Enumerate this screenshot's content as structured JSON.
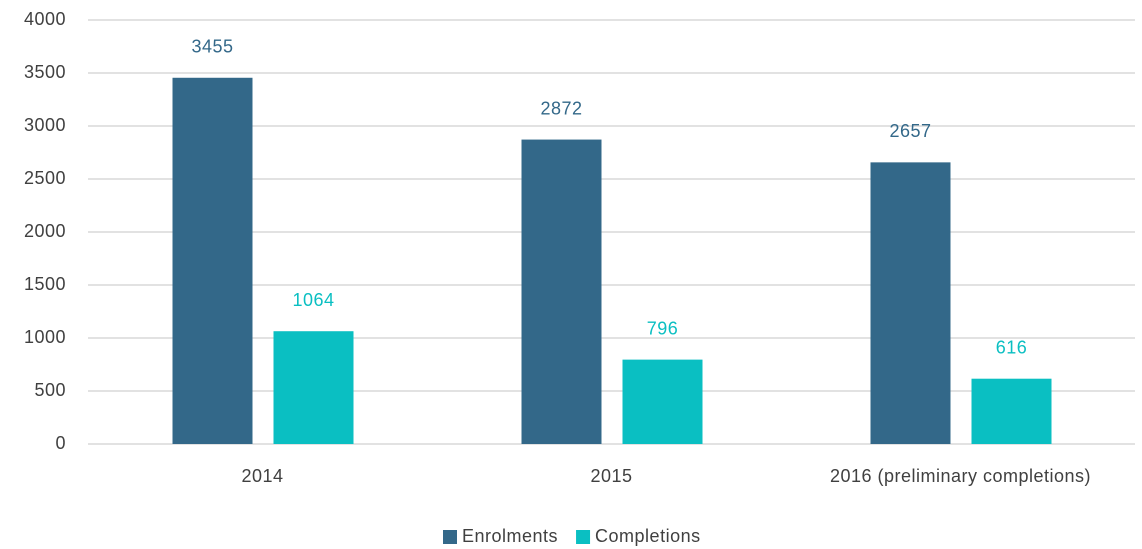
{
  "chart_data": {
    "type": "bar",
    "categories": [
      "2014",
      "2015",
      "2016 (preliminary completions)"
    ],
    "series": [
      {
        "name": "Enrolments",
        "color": "#336889",
        "values": [
          3455,
          2872,
          2657
        ]
      },
      {
        "name": "Completions",
        "color": "#0abfc2",
        "values": [
          1064,
          796,
          616
        ]
      }
    ],
    "ylim": [
      0,
      4000
    ],
    "yticks": [
      0,
      500,
      1000,
      1500,
      2000,
      2500,
      3000,
      3500,
      4000
    ],
    "grid": true,
    "legend": "bottom"
  }
}
